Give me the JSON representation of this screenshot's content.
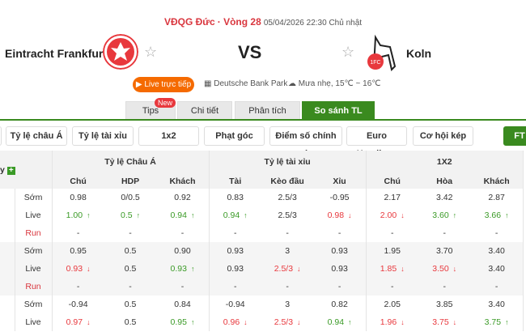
{
  "header": {
    "league": "VĐQG Đức",
    "round": "Vòng 28",
    "datetime": "05/04/2026 22:30 Chủ nhật",
    "home": "Eintracht Frankfurt",
    "away": "Koln",
    "vs": "VS",
    "live_label": "Live trực tiếp",
    "stadium": "Deutsche Bank Park",
    "weather": "Mưa nhẹ, 15℃ ~ 16℃"
  },
  "tabs": [
    {
      "label": "Tips",
      "badge": "New"
    },
    {
      "label": "Chi tiết"
    },
    {
      "label": "Phân tích"
    },
    {
      "label": "So sánh TL",
      "active": true
    }
  ],
  "filters": [
    "Tỷ lệ châu Á",
    "Tỷ lệ tài xỉu",
    "1x2",
    "Phạt góc",
    "Điểm số chính xác",
    "Euro Handicap",
    "Cơ hội kép"
  ],
  "ft_label": "FT",
  "table": {
    "first_header": "y",
    "groups": [
      "Tỷ lệ Châu Á",
      "Tỷ lệ tài xỉu",
      "1X2"
    ],
    "subs": [
      "Chú",
      "HDP",
      "Khách",
      "Tài",
      "Kèo đầu",
      "Xỉu",
      "Chú",
      "Hòa",
      "Khách"
    ],
    "rows": [
      {
        "label": "Sớm",
        "cells": [
          [
            "0.98",
            ""
          ],
          [
            "0/0.5",
            ""
          ],
          [
            "0.92",
            ""
          ],
          [
            "0.83",
            ""
          ],
          [
            "2.5/3",
            ""
          ],
          [
            "-0.95",
            ""
          ],
          [
            "2.17",
            ""
          ],
          [
            "3.42",
            ""
          ],
          [
            "2.87",
            ""
          ]
        ]
      },
      {
        "label": "Live",
        "cells": [
          [
            "1.00",
            "up"
          ],
          [
            "0.5",
            "up"
          ],
          [
            "0.94",
            "up"
          ],
          [
            "0.94",
            "up"
          ],
          [
            "2.5/3",
            ""
          ],
          [
            "0.98",
            "dn"
          ],
          [
            "2.00",
            "dn"
          ],
          [
            "3.60",
            "up"
          ],
          [
            "3.66",
            "up"
          ]
        ]
      },
      {
        "label": "Run",
        "cells": [
          [
            "-",
            ""
          ],
          [
            "-",
            ""
          ],
          [
            "-",
            ""
          ],
          [
            "-",
            ""
          ],
          [
            "-",
            ""
          ],
          [
            "-",
            ""
          ],
          [
            "-",
            ""
          ],
          [
            "-",
            ""
          ],
          [
            "-",
            ""
          ]
        ]
      },
      {
        "label": "Sớm",
        "cells": [
          [
            "0.95",
            ""
          ],
          [
            "0.5",
            ""
          ],
          [
            "0.90",
            ""
          ],
          [
            "0.93",
            ""
          ],
          [
            "3",
            ""
          ],
          [
            "0.93",
            ""
          ],
          [
            "1.95",
            ""
          ],
          [
            "3.70",
            ""
          ],
          [
            "3.40",
            ""
          ]
        ]
      },
      {
        "label": "Live",
        "cells": [
          [
            "0.93",
            "dn"
          ],
          [
            "0.5",
            ""
          ],
          [
            "0.93",
            "up"
          ],
          [
            "0.93",
            ""
          ],
          [
            "2.5/3",
            "dn"
          ],
          [
            "0.93",
            ""
          ],
          [
            "1.85",
            "dn"
          ],
          [
            "3.50",
            "dn"
          ],
          [
            "3.40",
            ""
          ]
        ]
      },
      {
        "label": "Run",
        "cells": [
          [
            "-",
            ""
          ],
          [
            "-",
            ""
          ],
          [
            "-",
            ""
          ],
          [
            "-",
            ""
          ],
          [
            "-",
            ""
          ],
          [
            "-",
            ""
          ],
          [
            "-",
            ""
          ],
          [
            "-",
            ""
          ],
          [
            "-",
            ""
          ]
        ]
      },
      {
        "label": "Sớm",
        "cells": [
          [
            "-0.94",
            ""
          ],
          [
            "0.5",
            ""
          ],
          [
            "0.84",
            ""
          ],
          [
            "-0.94",
            ""
          ],
          [
            "3",
            ""
          ],
          [
            "0.82",
            ""
          ],
          [
            "2.05",
            ""
          ],
          [
            "3.85",
            ""
          ],
          [
            "3.40",
            ""
          ]
        ]
      },
      {
        "label": "Live",
        "cells": [
          [
            "0.97",
            "dn"
          ],
          [
            "0.5",
            ""
          ],
          [
            "0.95",
            "up"
          ],
          [
            "0.96",
            "dn"
          ],
          [
            "2.5/3",
            "dn"
          ],
          [
            "0.94",
            "up"
          ],
          [
            "1.96",
            "dn"
          ],
          [
            "3.75",
            "dn"
          ],
          [
            "3.75",
            "up"
          ]
        ]
      }
    ]
  },
  "colors": {
    "accent": "#3a8a1f",
    "up": "#3a9a26",
    "down": "#e8383d",
    "live": "#f56a00"
  }
}
